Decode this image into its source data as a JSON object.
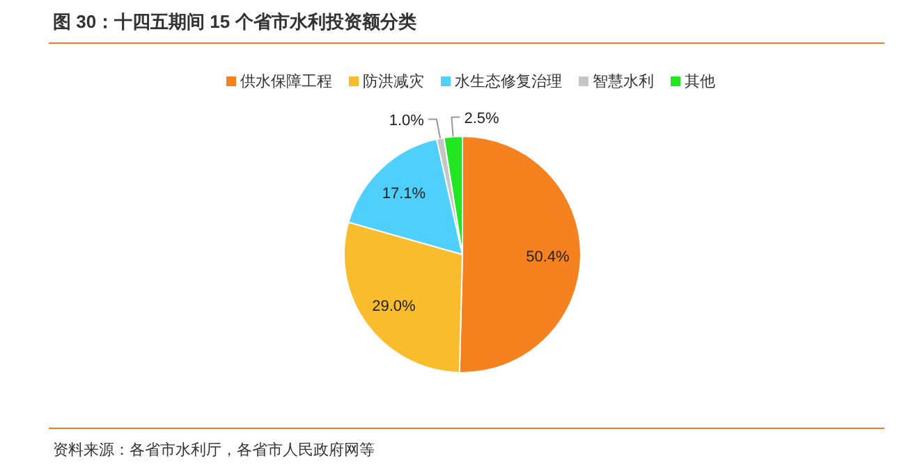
{
  "chart_data": {
    "type": "pie",
    "title": "图 30：十四五期间 15 个省市水利投资额分类",
    "annotations": [
      "资料来源：各省市水利厅，各省市人民政府网等"
    ],
    "categories": [
      "供水保障工程",
      "防洪减灾",
      "水生态修复治理",
      "智慧水利",
      "其他"
    ],
    "values": [
      50.4,
      29.0,
      17.1,
      1.0,
      2.5
    ],
    "colors": [
      "#f5821f",
      "#f9bc2c",
      "#4fcffc",
      "#c6c6c6",
      "#22e622"
    ],
    "value_labels": [
      "50.4%",
      "29.0%",
      "17.1%",
      "1.0%",
      "2.5%"
    ],
    "legend": "top"
  }
}
